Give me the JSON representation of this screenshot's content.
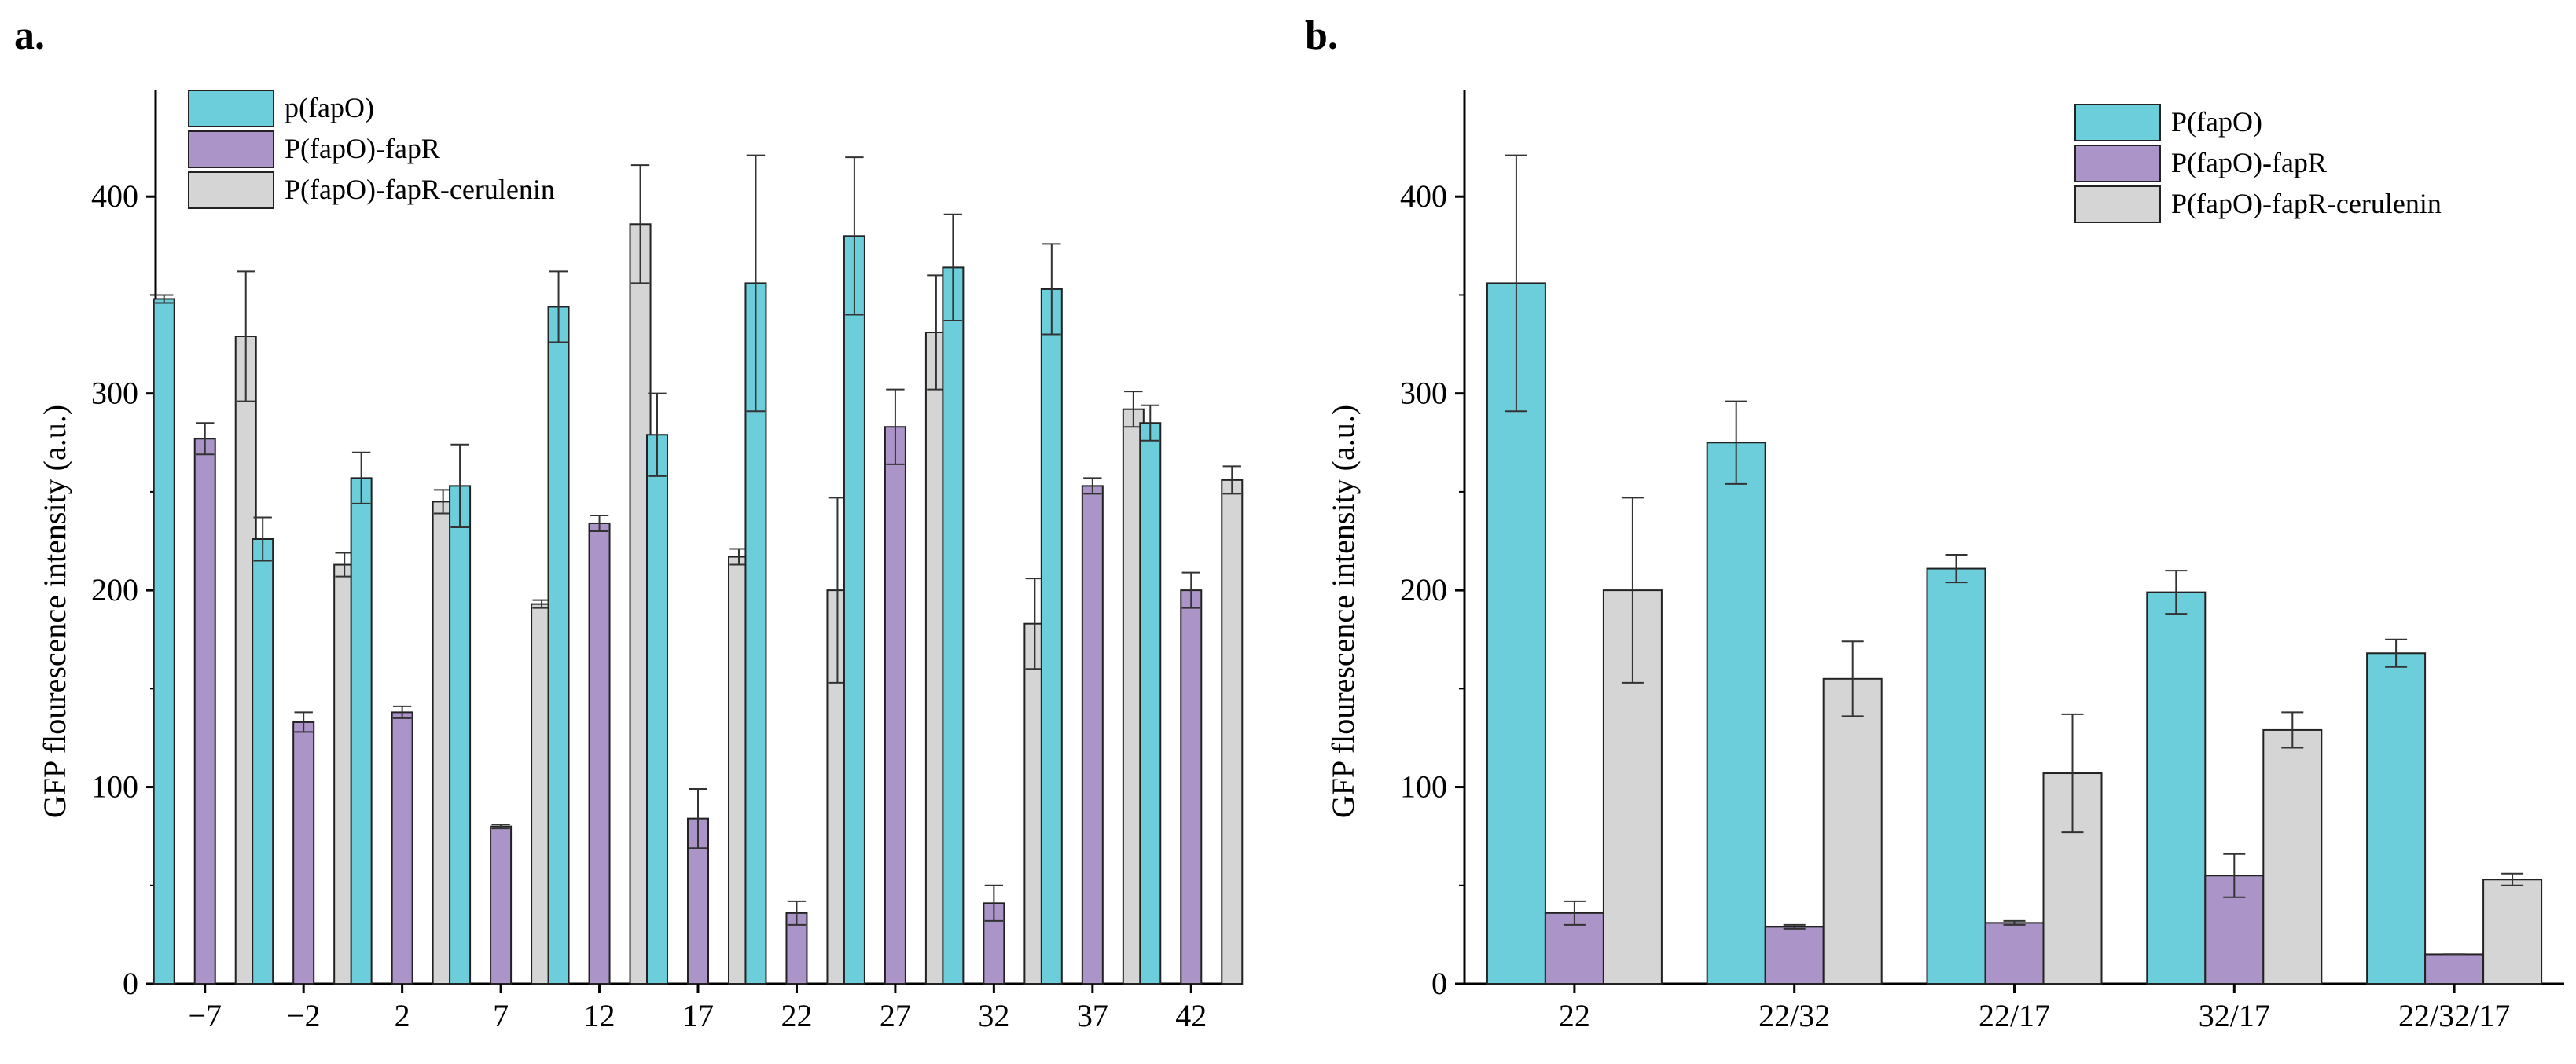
{
  "chart_data": [
    {
      "type": "bar",
      "panel_label": "a.",
      "title": "",
      "xlabel": "",
      "ylabel": "GFP flourescence intensity (a.u.)",
      "ylim": [
        0,
        450
      ],
      "yticks": [
        0,
        100,
        200,
        300,
        400
      ],
      "ytick_labels": [
        "0",
        "100",
        "200",
        "300",
        "400"
      ],
      "categories": [
        "−7",
        "−2",
        "2",
        "7",
        "12",
        "17",
        "22",
        "27",
        "32",
        "37",
        "42"
      ],
      "legend_position": "top-left",
      "series": [
        {
          "name": "p(fapO)",
          "color": "#6ccedb",
          "values": [
            348,
            226,
            257,
            253,
            344,
            279,
            356,
            380,
            364,
            353,
            285
          ],
          "errors": [
            2,
            11,
            13,
            21,
            18,
            21,
            65,
            40,
            27,
            23,
            9
          ]
        },
        {
          "name": "P(fapO)-fapR",
          "color": "#ab94c8",
          "values": [
            277,
            133,
            138,
            80,
            234,
            84,
            36,
            283,
            41,
            253,
            200
          ],
          "errors": [
            8,
            5,
            3,
            1,
            4,
            15,
            6,
            19,
            9,
            4,
            9
          ]
        },
        {
          "name": "P(fapO)-fapR-cerulenin",
          "color": "#d5d5d5",
          "values": [
            329,
            213,
            245,
            193,
            386,
            217,
            200,
            331,
            183,
            292,
            256
          ],
          "errors": [
            33,
            6,
            6,
            2,
            30,
            4,
            47,
            29,
            23,
            9,
            7
          ]
        }
      ]
    },
    {
      "type": "bar",
      "panel_label": "b.",
      "title": "",
      "xlabel": "",
      "ylabel": "GFP flourescence intensity (a.u.)",
      "ylim": [
        0,
        450
      ],
      "yticks": [
        0,
        100,
        200,
        300,
        400
      ],
      "ytick_labels": [
        "0",
        "100",
        "200",
        "300",
        "400"
      ],
      "categories": [
        "22",
        "22/32",
        "22/17",
        "32/17",
        "22/32/17"
      ],
      "legend_position": "top-right",
      "series": [
        {
          "name": "P(fapO)",
          "color": "#6ccedb",
          "values": [
            356,
            275,
            211,
            199,
            168
          ],
          "errors": [
            65,
            21,
            7,
            11,
            7
          ]
        },
        {
          "name": "P(fapO)-fapR",
          "color": "#ab94c8",
          "values": [
            36,
            29,
            31,
            55,
            15
          ],
          "errors": [
            6,
            1,
            1,
            11,
            0
          ]
        },
        {
          "name": "P(fapO)-fapR-cerulenin",
          "color": "#d5d5d5",
          "values": [
            200,
            155,
            107,
            129,
            53
          ],
          "errors": [
            47,
            19,
            30,
            9,
            3
          ]
        }
      ]
    }
  ]
}
